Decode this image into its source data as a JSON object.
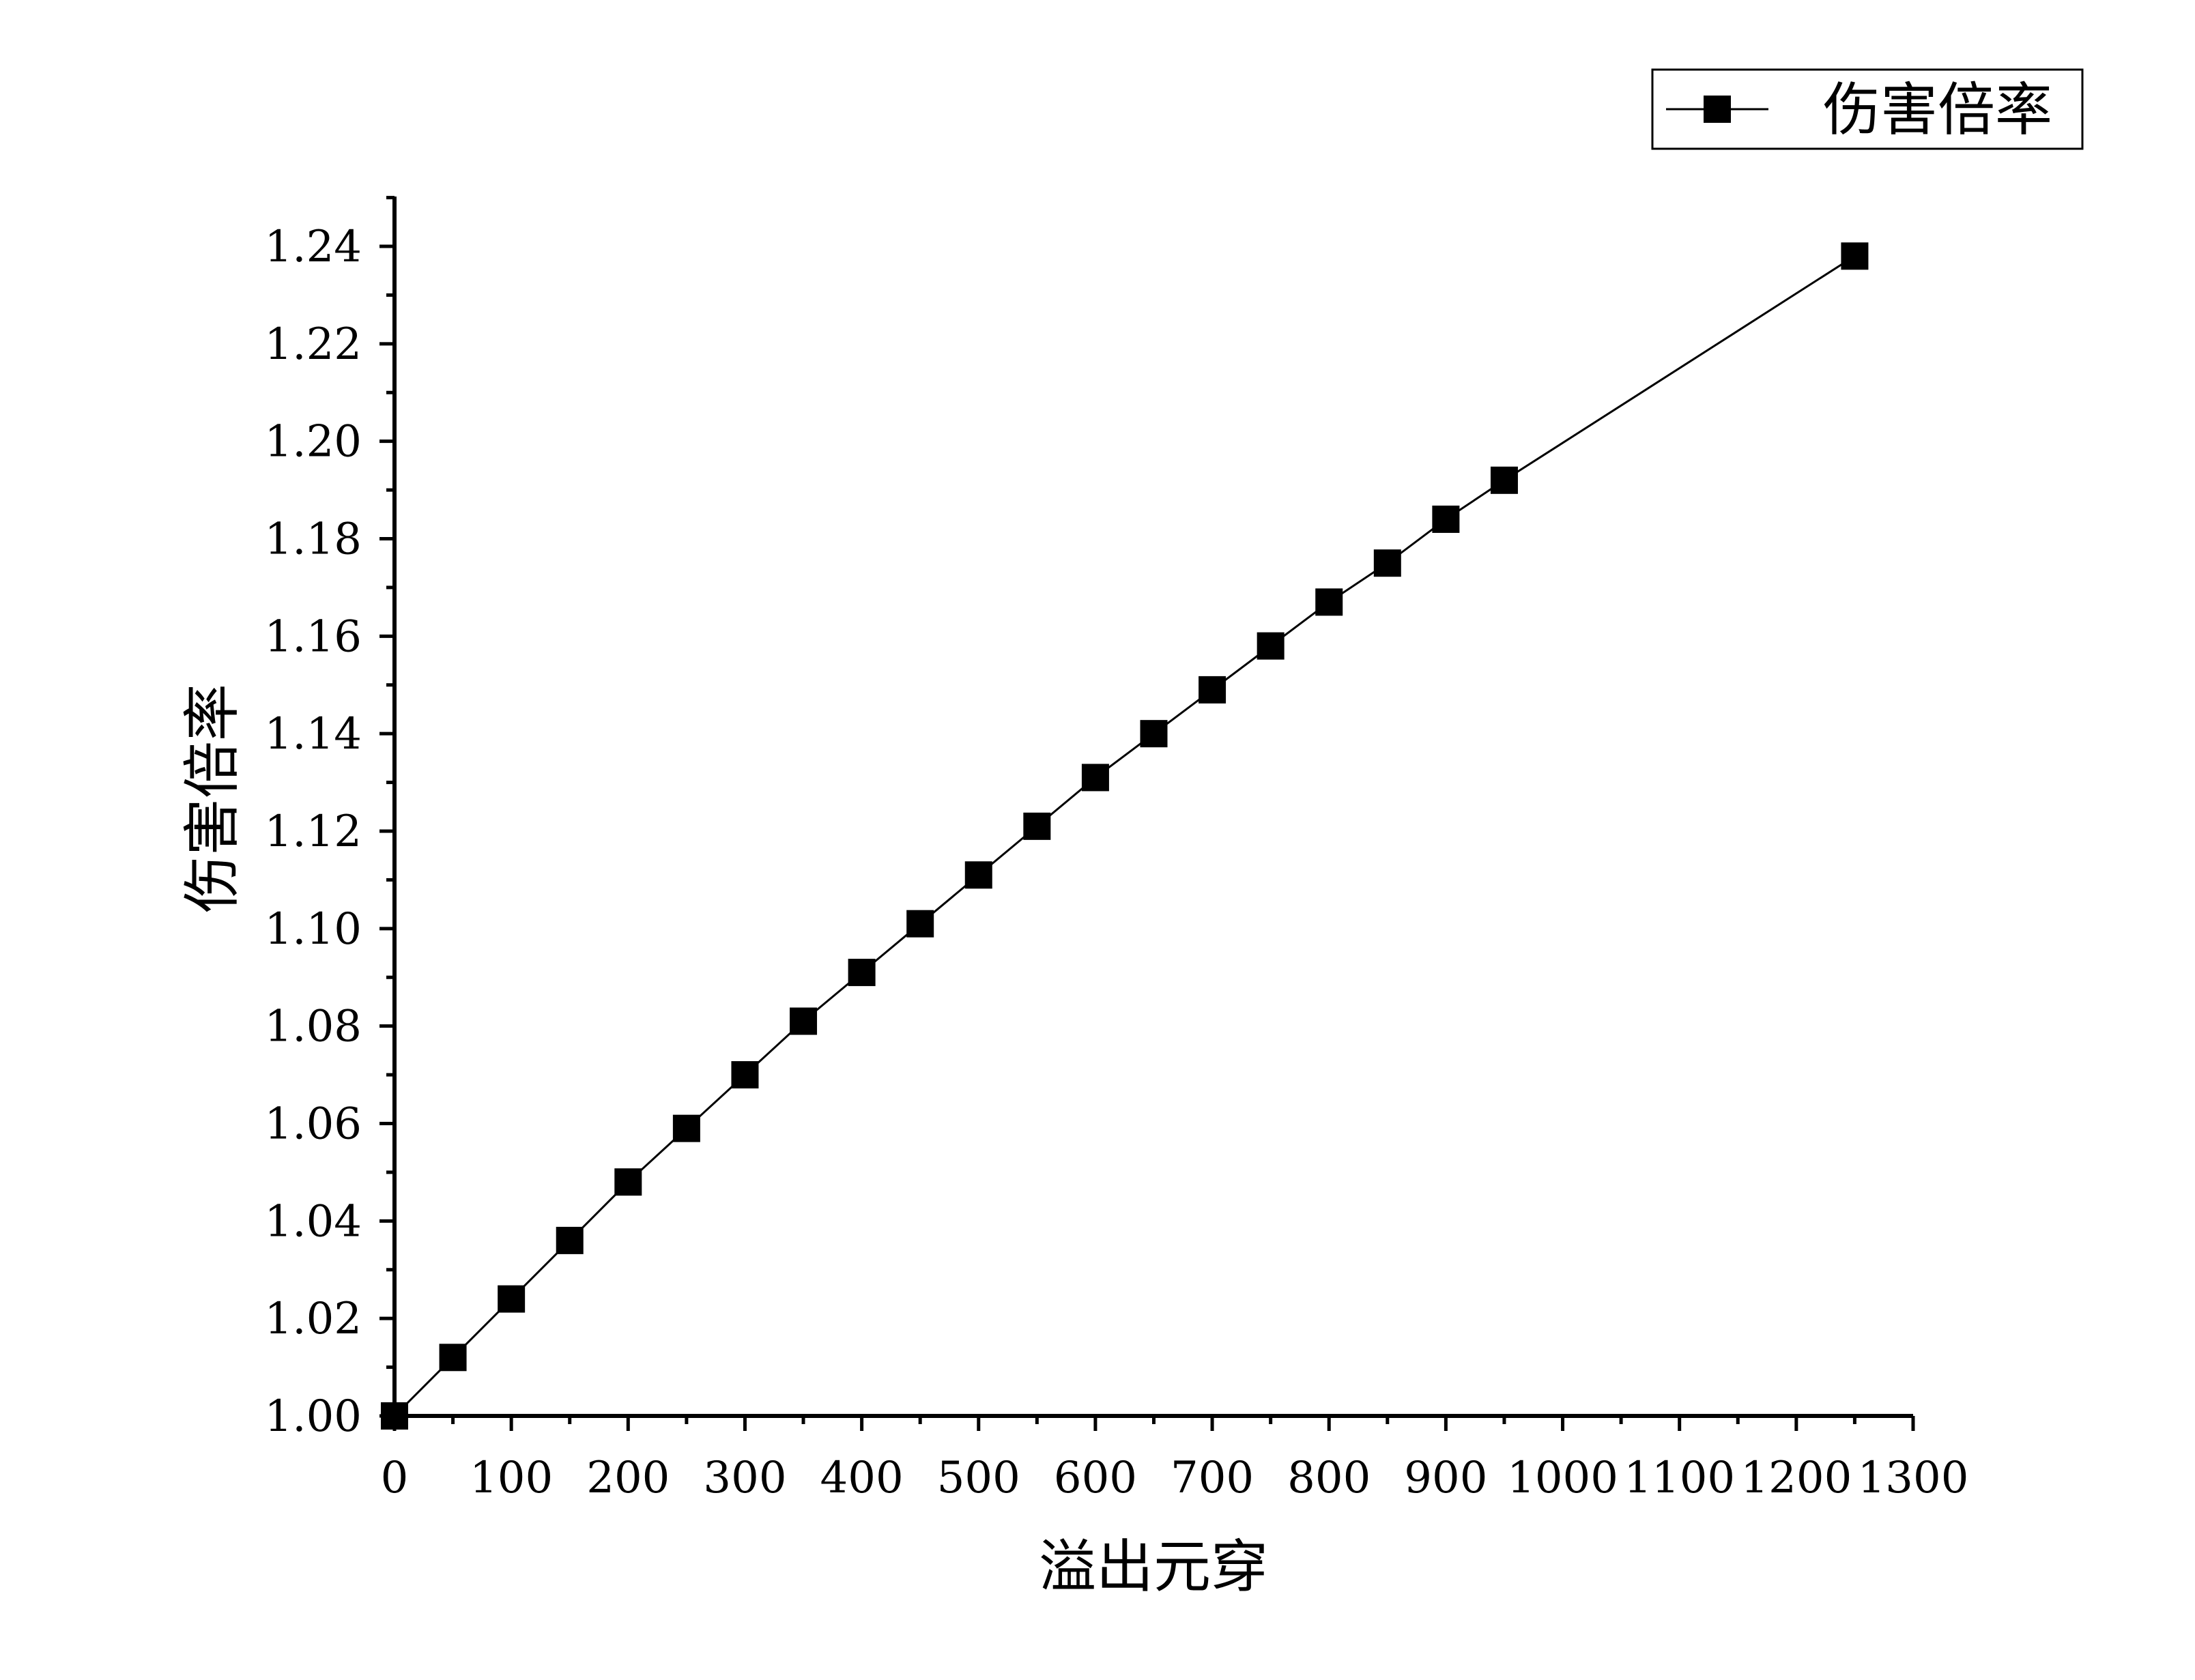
{
  "chart_data": {
    "type": "line",
    "title": "",
    "xlabel": "溢出元穿",
    "ylabel": "伤害倍率",
    "xlim": [
      0,
      1300
    ],
    "ylim": [
      1.0,
      1.25
    ],
    "x_ticks": [
      0,
      100,
      200,
      300,
      400,
      500,
      600,
      700,
      800,
      900,
      1000,
      1100,
      1200,
      1300
    ],
    "x_tick_labels": [
      "0",
      "100",
      "200",
      "300",
      "400",
      "500",
      "600",
      "700",
      "800",
      "900",
      "1000",
      "1100",
      "1200",
      "1300"
    ],
    "y_ticks": [
      1.0,
      1.02,
      1.04,
      1.06,
      1.08,
      1.1,
      1.12,
      1.14,
      1.16,
      1.18,
      1.2,
      1.22,
      1.24
    ],
    "y_tick_labels": [
      "1.00",
      "1.02",
      "1.04",
      "1.06",
      "1.08",
      "1.10",
      "1.12",
      "1.14",
      "1.16",
      "1.18",
      "1.20",
      "1.22",
      "1.24"
    ],
    "grid": false,
    "legend_position": "top-right",
    "series": [
      {
        "name": "伤害倍率",
        "color": "#000000",
        "marker": "square",
        "x": [
          0,
          50,
          100,
          150,
          200,
          250,
          300,
          350,
          400,
          450,
          500,
          550,
          600,
          650,
          700,
          750,
          800,
          850,
          900,
          950,
          1250
        ],
        "values": [
          1.0,
          1.012,
          1.024,
          1.036,
          1.048,
          1.059,
          1.07,
          1.081,
          1.091,
          1.101,
          1.111,
          1.121,
          1.131,
          1.14,
          1.149,
          1.158,
          1.167,
          1.175,
          1.184,
          1.192,
          1.238
        ]
      }
    ]
  }
}
